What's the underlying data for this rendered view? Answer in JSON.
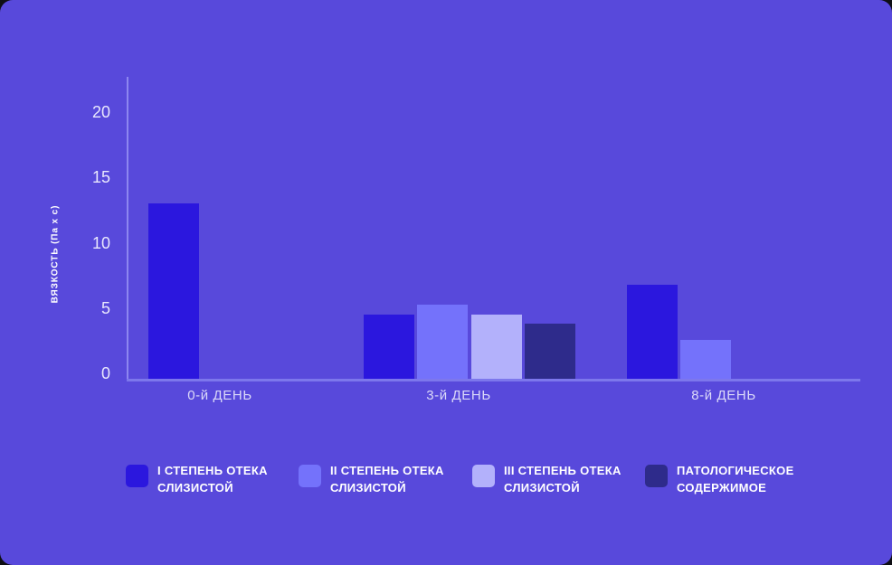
{
  "card": {
    "background": "#5849db"
  },
  "chart_data": {
    "type": "bar",
    "title": "",
    "xlabel": "",
    "ylabel": "ВЯЗКОСТЬ (Па x с)",
    "ylim": [
      0,
      20
    ],
    "yticks": [
      0,
      5,
      10,
      15,
      20
    ],
    "grid": false,
    "legend_position": "bottom",
    "categories": [
      "0-й ДЕНЬ",
      "3-й ДЕНЬ",
      "8-й ДЕНЬ"
    ],
    "series": [
      {
        "name": "I СТЕПЕНЬ ОТЕКА СЛИЗИСТОЙ",
        "legend_label": "I СТЕПЕНЬ ОТЕКА\nСЛИЗИСТОЙ",
        "color": "#2b17de",
        "values": [
          13.4,
          4.9,
          7.2
        ]
      },
      {
        "name": "II СТЕПЕНЬ ОТЕКА СЛИЗИСТОЙ",
        "legend_label": "II СТЕПЕНЬ ОТЕКА\nСЛИЗИСТОЙ",
        "color": "#7472fb",
        "values": [
          null,
          5.7,
          3.0
        ]
      },
      {
        "name": "III СТЕПЕНЬ ОТЕКА СЛИЗИСТОЙ",
        "legend_label": "III СТЕПЕНЬ ОТЕКА\nСЛИЗИСТОЙ",
        "color": "#b3b1fb",
        "values": [
          null,
          4.9,
          null
        ]
      },
      {
        "name": "ПАТОЛОГИЧЕСКОЕ СОДЕРЖИМОЕ",
        "legend_label": "ПАТОЛОГИЧЕСКОЕ\nСОДЕРЖИМОЕ",
        "color": "#2e2b8b",
        "values": [
          null,
          4.2,
          null
        ]
      }
    ],
    "colors": {
      "y_axis_line": "#8d86f0",
      "x_axis_line": "#7d77ec",
      "tick_label": "#e9e8fd",
      "category_label": "#dcdaf9",
      "legend_text": "#ffffff"
    }
  }
}
